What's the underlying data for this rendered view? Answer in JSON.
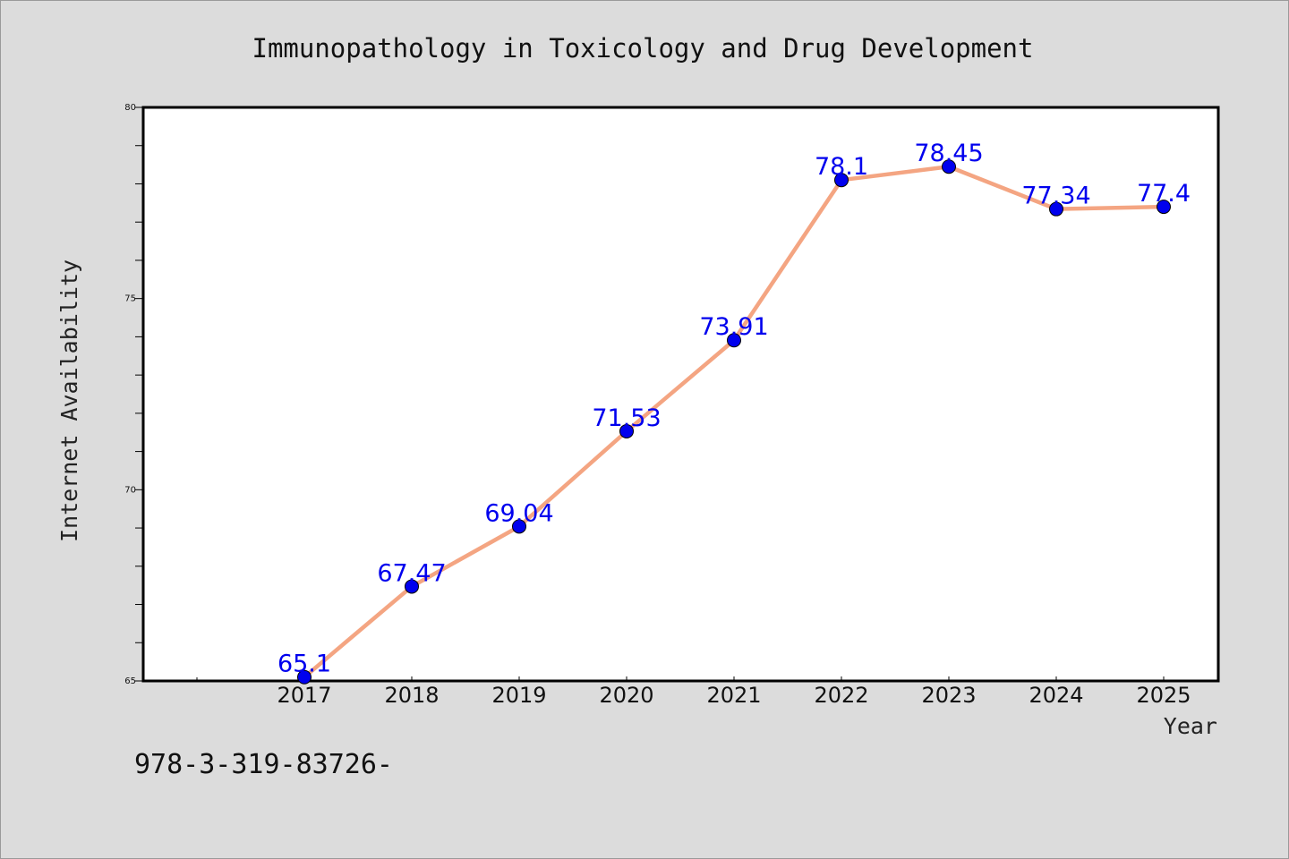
{
  "chart_data": {
    "type": "line",
    "title": "Immunopathology in Toxicology and Drug Development",
    "xlabel": "Year",
    "ylabel": "Internet Availability",
    "categories": [
      "2017",
      "2018",
      "2019",
      "2020",
      "2021",
      "2022",
      "2023",
      "2024",
      "2025"
    ],
    "series": [
      {
        "values": [
          65.1,
          67.47,
          69.04,
          71.53,
          73.91,
          78.1,
          78.45,
          77.34,
          77.4
        ],
        "labels": [
          "65.1",
          "67.47",
          "69.04",
          "71.53",
          "73.91",
          "78.1",
          "78.45",
          "77.34",
          "77.4"
        ],
        "line_color": "#f4a582",
        "marker_color": "#0000ee"
      }
    ],
    "ylim": [
      65,
      80
    ],
    "yticks": [
      "65",
      "70",
      "75",
      "80"
    ],
    "grid": false,
    "legend": "none"
  },
  "footer": {
    "text": "978-3-319-83726-"
  }
}
